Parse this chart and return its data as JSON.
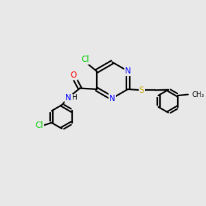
{
  "background_color": "#e8e8e8",
  "bond_color": "#000000",
  "N_color": "#0000ff",
  "O_color": "#ff0000",
  "Cl_color": "#00cc00",
  "S_color": "#ccaa00",
  "line_width": 1.6,
  "figsize": [
    3.0,
    3.0
  ],
  "dpi": 100,
  "xlim": [
    0,
    10
  ],
  "ylim": [
    0,
    10
  ]
}
